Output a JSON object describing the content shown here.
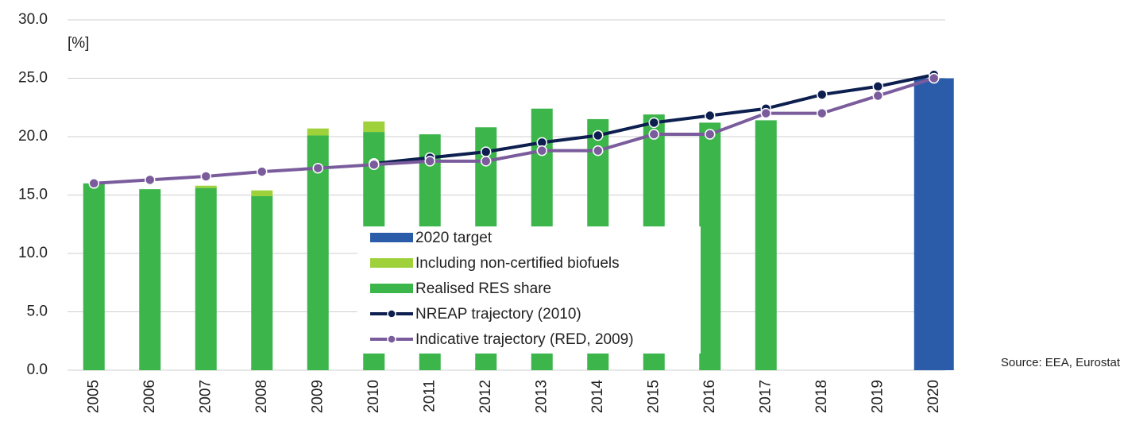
{
  "chart_data": {
    "type": "bar",
    "y_label": "[%]",
    "source": "Source: EEA, Eurostat",
    "categories": [
      "2005",
      "2006",
      "2007",
      "2008",
      "2009",
      "2010",
      "2011",
      "2012",
      "2013",
      "2014",
      "2015",
      "2016",
      "2017",
      "2018",
      "2019",
      "2020"
    ],
    "series": [
      {
        "name": "2020 target",
        "kind": "bar",
        "color": "#2a5caa",
        "values": [
          null,
          null,
          null,
          null,
          null,
          null,
          null,
          null,
          null,
          null,
          null,
          null,
          null,
          null,
          null,
          25.0
        ]
      },
      {
        "name": "Including non-certified biofuels",
        "kind": "stack",
        "color": "#9fd13a",
        "values": [
          null,
          null,
          0.2,
          0.5,
          0.6,
          0.9,
          null,
          null,
          null,
          null,
          null,
          null,
          null,
          null,
          null,
          null
        ]
      },
      {
        "name": "Realised RES share",
        "kind": "bar",
        "color": "#3cb54a",
        "values": [
          16.0,
          15.5,
          15.6,
          14.9,
          20.1,
          20.4,
          20.2,
          20.8,
          22.4,
          21.5,
          21.9,
          21.2,
          21.4,
          null,
          null,
          null
        ]
      },
      {
        "name": "NREAP trajectory (2010)",
        "kind": "line",
        "color": "#0d1f4f",
        "values": [
          null,
          null,
          null,
          null,
          null,
          17.7,
          18.2,
          18.7,
          19.5,
          20.1,
          21.2,
          21.8,
          22.4,
          23.6,
          24.3,
          25.3
        ]
      },
      {
        "name": "Indicative trajectory (RED, 2009)",
        "kind": "line",
        "color": "#7a5c9c",
        "values": [
          16.0,
          16.3,
          16.6,
          17.0,
          17.3,
          17.6,
          17.9,
          17.9,
          18.8,
          18.8,
          20.2,
          20.2,
          22.0,
          22.0,
          23.5,
          25.0
        ]
      }
    ],
    "ylim": [
      0,
      30
    ],
    "yticks": [
      {
        "value": 0,
        "label": "0.0"
      },
      {
        "value": 5,
        "label": "5.0"
      },
      {
        "value": 10,
        "label": "10.0"
      },
      {
        "value": 15,
        "label": "15.0"
      },
      {
        "value": 20,
        "label": "20.0"
      },
      {
        "value": 25,
        "label": "25.0"
      },
      {
        "value": 30,
        "label": "30.0"
      }
    ],
    "grid": true,
    "legend": "center"
  }
}
